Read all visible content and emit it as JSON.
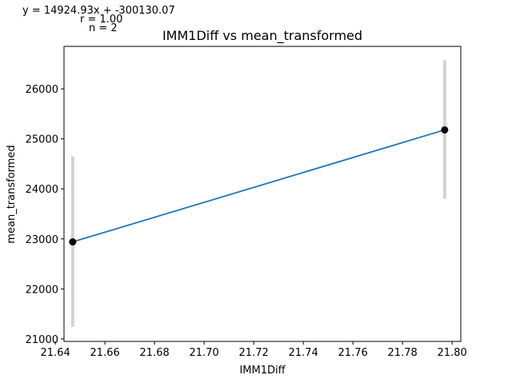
{
  "annotations": {
    "equation": "y = 14924.93x + -300130.07",
    "r": "r = 1.00",
    "n": "n = 2"
  },
  "chart_data": {
    "type": "line",
    "title": "IMM1Diff vs mean_transformed",
    "xlabel": "IMM1Diff",
    "ylabel": "mean_transformed",
    "xlim": [
      21.6435,
      21.8035
    ],
    "ylim": [
      20950,
      26850
    ],
    "x_ticks": [
      "21.64",
      "21.66",
      "21.68",
      "21.70",
      "21.72",
      "21.74",
      "21.76",
      "21.78",
      "21.80"
    ],
    "x_tick_values": [
      21.64,
      21.66,
      21.68,
      21.7,
      21.72,
      21.74,
      21.76,
      21.78,
      21.8
    ],
    "y_ticks": [
      "21000",
      "22000",
      "23000",
      "24000",
      "25000",
      "26000"
    ],
    "y_tick_values": [
      21000,
      22000,
      23000,
      24000,
      25000,
      26000
    ],
    "grid": false,
    "series": [
      {
        "x": [
          21.647,
          21.797
        ],
        "y": [
          22940,
          25180
        ],
        "error_low": [
          21240,
          23800
        ],
        "error_high": [
          24650,
          26570
        ],
        "line_color": "#1f77b4",
        "marker_color": "#000000",
        "error_color": "#d3d3d3"
      }
    ]
  }
}
